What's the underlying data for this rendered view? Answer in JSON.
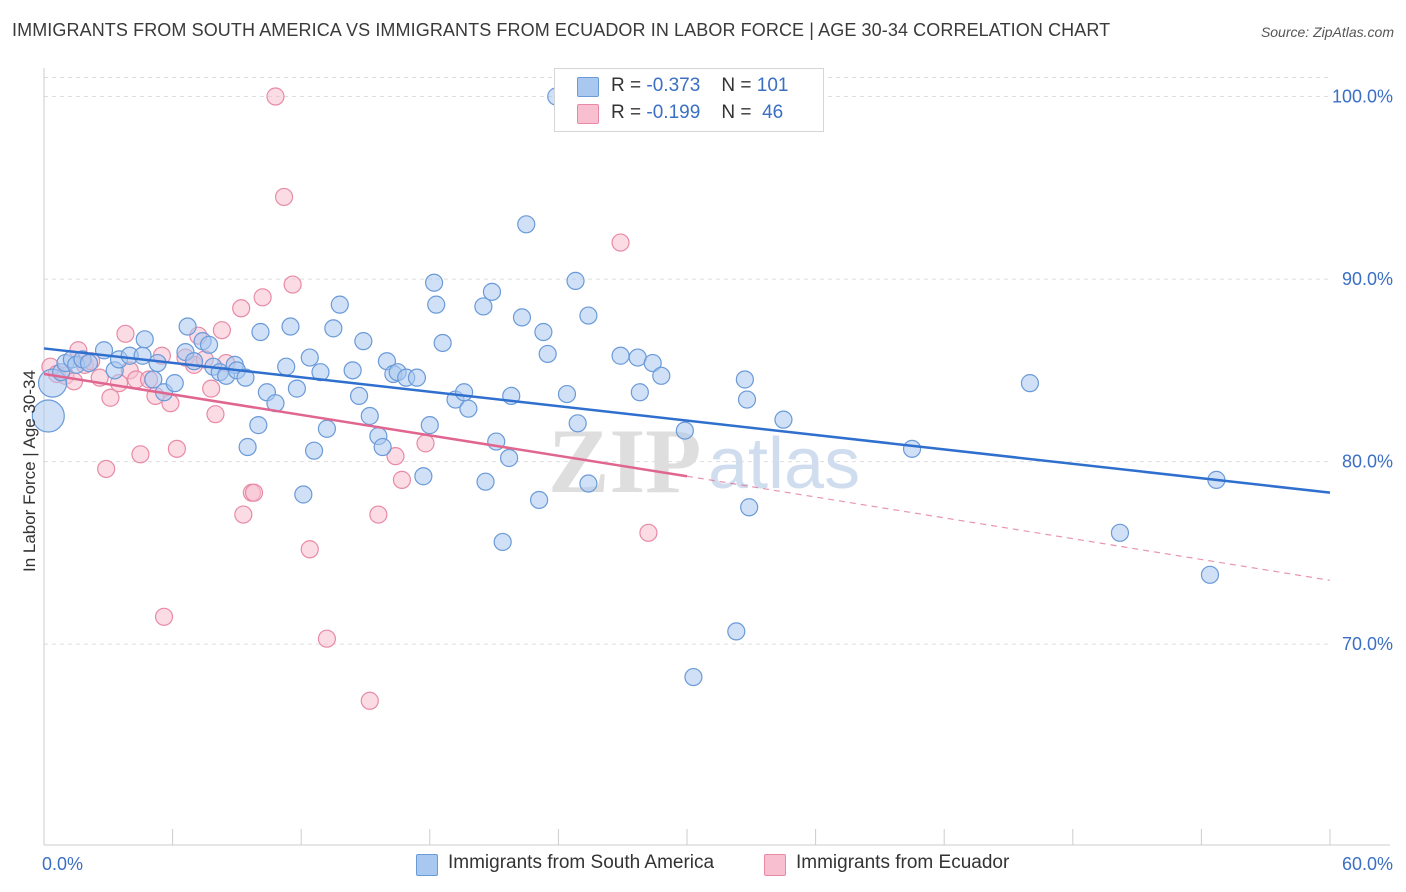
{
  "header": {
    "title": "IMMIGRANTS FROM SOUTH AMERICA VS IMMIGRANTS FROM ECUADOR IN LABOR FORCE | AGE 30-34 CORRELATION CHART",
    "source": "Source: ZipAtlas.com"
  },
  "watermark": {
    "zip": "ZIP",
    "atlas": "atlas"
  },
  "legend": {
    "series": [
      {
        "r_label": "R =",
        "r_value": "-0.373",
        "n_label": "N =",
        "n_value": "101"
      },
      {
        "r_label": "R =",
        "r_value": "-0.199",
        "n_label": "N =",
        "n_value": "46"
      }
    ]
  },
  "colors": {
    "blue_fill": "#a9c8f0",
    "blue_stroke": "#6a9ad8",
    "blue_line": "#2f6fce",
    "pink_fill": "#f7bfcf",
    "pink_stroke": "#e88aa6",
    "pink_line": "#e06690",
    "axis_text": "#3a6fc4",
    "grid": "#dddddd"
  },
  "chart_data": {
    "type": "scatter",
    "title": "IMMIGRANTS FROM SOUTH AMERICA VS IMMIGRANTS FROM ECUADOR IN LABOR FORCE | AGE 30-34 CORRELATION CHART",
    "xlabel": "",
    "ylabel": "In Labor Force | Age 30-34",
    "xlim": [
      0,
      60
    ],
    "ylim": [
      59,
      102
    ],
    "x_tick_labels": [
      "0.0%",
      "60.0%"
    ],
    "y_ticks": [
      70,
      80,
      90,
      100
    ],
    "y_tick_labels": [
      "70.0%",
      "80.0%",
      "90.0%",
      "100.0%"
    ],
    "grid": true,
    "legend_position": "bottom",
    "series": [
      {
        "name": "Immigrants from South America",
        "color": "#a9c8f0",
        "trend": {
          "x": [
            0,
            60
          ],
          "y": [
            86.2,
            78.3
          ],
          "dashed_after": null
        },
        "points": [
          {
            "x": 0.2,
            "y": 82.5,
            "big": 2
          },
          {
            "x": 0.4,
            "y": 84.3,
            "big": 1
          },
          {
            "x": 0.8,
            "y": 84.9
          },
          {
            "x": 1.0,
            "y": 85.4
          },
          {
            "x": 1.3,
            "y": 85.6
          },
          {
            "x": 1.5,
            "y": 85.3
          },
          {
            "x": 1.8,
            "y": 85.6
          },
          {
            "x": 2.1,
            "y": 85.4
          },
          {
            "x": 2.8,
            "y": 86.1
          },
          {
            "x": 3.3,
            "y": 85.0
          },
          {
            "x": 3.5,
            "y": 85.6
          },
          {
            "x": 4.0,
            "y": 85.8
          },
          {
            "x": 4.6,
            "y": 85.8
          },
          {
            "x": 4.7,
            "y": 86.7
          },
          {
            "x": 5.1,
            "y": 84.5
          },
          {
            "x": 5.3,
            "y": 85.4
          },
          {
            "x": 5.6,
            "y": 83.8
          },
          {
            "x": 6.1,
            "y": 84.3
          },
          {
            "x": 6.6,
            "y": 86.0
          },
          {
            "x": 6.7,
            "y": 87.4
          },
          {
            "x": 7.0,
            "y": 85.5
          },
          {
            "x": 7.4,
            "y": 86.6
          },
          {
            "x": 7.7,
            "y": 86.4
          },
          {
            "x": 7.9,
            "y": 85.2
          },
          {
            "x": 8.2,
            "y": 84.9
          },
          {
            "x": 8.5,
            "y": 84.7
          },
          {
            "x": 8.9,
            "y": 85.3
          },
          {
            "x": 9.0,
            "y": 85.0
          },
          {
            "x": 9.4,
            "y": 84.6
          },
          {
            "x": 9.5,
            "y": 80.8
          },
          {
            "x": 10.0,
            "y": 82.0
          },
          {
            "x": 10.1,
            "y": 87.1
          },
          {
            "x": 10.4,
            "y": 83.8
          },
          {
            "x": 10.8,
            "y": 83.2
          },
          {
            "x": 11.3,
            "y": 85.2
          },
          {
            "x": 11.5,
            "y": 87.4
          },
          {
            "x": 11.8,
            "y": 84.0
          },
          {
            "x": 12.1,
            "y": 78.2
          },
          {
            "x": 12.4,
            "y": 85.7
          },
          {
            "x": 12.6,
            "y": 80.6
          },
          {
            "x": 12.9,
            "y": 84.9
          },
          {
            "x": 13.2,
            "y": 81.8
          },
          {
            "x": 13.5,
            "y": 87.3
          },
          {
            "x": 13.8,
            "y": 88.6
          },
          {
            "x": 14.4,
            "y": 85.0
          },
          {
            "x": 14.7,
            "y": 83.6
          },
          {
            "x": 14.9,
            "y": 86.6
          },
          {
            "x": 15.2,
            "y": 82.5
          },
          {
            "x": 15.6,
            "y": 81.4
          },
          {
            "x": 16.0,
            "y": 85.5
          },
          {
            "x": 15.8,
            "y": 80.8
          },
          {
            "x": 16.3,
            "y": 84.8
          },
          {
            "x": 16.5,
            "y": 84.9
          },
          {
            "x": 16.9,
            "y": 84.6
          },
          {
            "x": 17.4,
            "y": 84.6
          },
          {
            "x": 17.7,
            "y": 79.2
          },
          {
            "x": 18.0,
            "y": 82.0
          },
          {
            "x": 18.3,
            "y": 88.6
          },
          {
            "x": 18.6,
            "y": 86.5
          },
          {
            "x": 18.2,
            "y": 89.8
          },
          {
            "x": 19.2,
            "y": 83.4
          },
          {
            "x": 19.6,
            "y": 83.8
          },
          {
            "x": 19.8,
            "y": 82.9
          },
          {
            "x": 20.6,
            "y": 78.9
          },
          {
            "x": 20.5,
            "y": 88.5
          },
          {
            "x": 20.9,
            "y": 89.3
          },
          {
            "x": 21.1,
            "y": 81.1
          },
          {
            "x": 21.4,
            "y": 75.6
          },
          {
            "x": 21.7,
            "y": 80.2
          },
          {
            "x": 21.8,
            "y": 83.6
          },
          {
            "x": 22.3,
            "y": 87.9
          },
          {
            "x": 22.5,
            "y": 93.0
          },
          {
            "x": 23.1,
            "y": 77.9
          },
          {
            "x": 23.3,
            "y": 87.1
          },
          {
            "x": 23.5,
            "y": 85.9
          },
          {
            "x": 23.9,
            "y": 100.0
          },
          {
            "x": 24.4,
            "y": 83.7
          },
          {
            "x": 24.8,
            "y": 89.9
          },
          {
            "x": 24.9,
            "y": 82.1
          },
          {
            "x": 25.4,
            "y": 78.8
          },
          {
            "x": 25.4,
            "y": 88.0
          },
          {
            "x": 26.9,
            "y": 85.8
          },
          {
            "x": 27.7,
            "y": 85.7
          },
          {
            "x": 27.8,
            "y": 83.8
          },
          {
            "x": 28.4,
            "y": 85.4
          },
          {
            "x": 28.8,
            "y": 84.7
          },
          {
            "x": 29.9,
            "y": 81.7
          },
          {
            "x": 30.3,
            "y": 68.2
          },
          {
            "x": 32.3,
            "y": 70.7
          },
          {
            "x": 32.7,
            "y": 84.5
          },
          {
            "x": 32.8,
            "y": 83.4
          },
          {
            "x": 32.9,
            "y": 77.5
          },
          {
            "x": 34.5,
            "y": 82.3
          },
          {
            "x": 40.5,
            "y": 80.7
          },
          {
            "x": 46.0,
            "y": 84.3
          },
          {
            "x": 50.2,
            "y": 76.1
          },
          {
            "x": 54.4,
            "y": 73.8
          },
          {
            "x": 54.7,
            "y": 79.0
          }
        ]
      },
      {
        "name": "Immigrants from Ecuador",
        "color": "#f7bfcf",
        "trend": {
          "x": [
            0,
            30,
            60
          ],
          "y": [
            84.8,
            79.2,
            73.5
          ],
          "dashed_after": 30
        },
        "points": [
          {
            "x": 0.3,
            "y": 85.2
          },
          {
            "x": 0.6,
            "y": 84.8
          },
          {
            "x": 1.0,
            "y": 84.7
          },
          {
            "x": 1.4,
            "y": 84.4
          },
          {
            "x": 1.6,
            "y": 86.1
          },
          {
            "x": 1.9,
            "y": 85.3
          },
          {
            "x": 2.2,
            "y": 85.5
          },
          {
            "x": 2.6,
            "y": 84.6
          },
          {
            "x": 2.9,
            "y": 79.6
          },
          {
            "x": 3.1,
            "y": 83.5
          },
          {
            "x": 3.5,
            "y": 84.3
          },
          {
            "x": 3.8,
            "y": 87.0
          },
          {
            "x": 4.0,
            "y": 85.0
          },
          {
            "x": 4.3,
            "y": 84.5
          },
          {
            "x": 4.5,
            "y": 80.4
          },
          {
            "x": 4.9,
            "y": 84.5
          },
          {
            "x": 5.2,
            "y": 83.6
          },
          {
            "x": 5.5,
            "y": 85.8
          },
          {
            "x": 5.6,
            "y": 71.5
          },
          {
            "x": 5.9,
            "y": 83.2
          },
          {
            "x": 6.2,
            "y": 80.7
          },
          {
            "x": 6.6,
            "y": 85.7
          },
          {
            "x": 7.0,
            "y": 85.3
          },
          {
            "x": 7.2,
            "y": 86.9
          },
          {
            "x": 7.5,
            "y": 85.6
          },
          {
            "x": 7.8,
            "y": 84.0
          },
          {
            "x": 8.0,
            "y": 82.6
          },
          {
            "x": 8.3,
            "y": 87.2
          },
          {
            "x": 8.5,
            "y": 85.4
          },
          {
            "x": 9.2,
            "y": 88.4
          },
          {
            "x": 9.3,
            "y": 77.1
          },
          {
            "x": 9.7,
            "y": 78.3
          },
          {
            "x": 9.8,
            "y": 78.3
          },
          {
            "x": 10.2,
            "y": 89.0
          },
          {
            "x": 10.8,
            "y": 100.0
          },
          {
            "x": 11.2,
            "y": 94.5
          },
          {
            "x": 11.6,
            "y": 89.7
          },
          {
            "x": 12.4,
            "y": 75.2
          },
          {
            "x": 13.2,
            "y": 70.3
          },
          {
            "x": 15.2,
            "y": 66.9
          },
          {
            "x": 15.6,
            "y": 77.1
          },
          {
            "x": 16.4,
            "y": 80.3
          },
          {
            "x": 16.7,
            "y": 79.0
          },
          {
            "x": 17.8,
            "y": 81.0
          },
          {
            "x": 26.9,
            "y": 92.0
          },
          {
            "x": 28.2,
            "y": 76.1
          }
        ]
      }
    ]
  },
  "axis": {
    "y_title": "In Labor Force | Age 30-34",
    "x_min_label": "0.0%",
    "x_max_label": "60.0%"
  }
}
